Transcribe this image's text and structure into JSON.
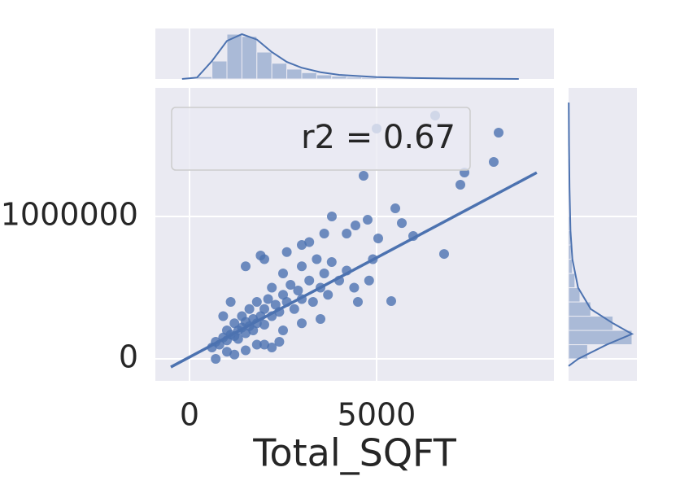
{
  "chart_data": {
    "type": "scatter",
    "x_label": "Total_SQFT",
    "annotation": "r2 = 0.67",
    "color": "#4c72b0",
    "grid": true,
    "xlim": [
      -913,
      9739
    ],
    "ylim": [
      -154000,
      1903000
    ],
    "xticks": [
      0,
      5000
    ],
    "yticks": [
      0,
      1000000
    ],
    "x": [
      600,
      700,
      800,
      900,
      1000,
      1000,
      1100,
      1200,
      1200,
      1300,
      1300,
      1400,
      1400,
      1500,
      1500,
      1600,
      1600,
      1700,
      1700,
      1800,
      1800,
      1900,
      2000,
      2000,
      2100,
      2200,
      2200,
      2300,
      2400,
      2500,
      2500,
      2600,
      2700,
      2800,
      2900,
      3000,
      3000,
      3200,
      3300,
      3400,
      3500,
      3600,
      3700,
      3800,
      4000,
      4200,
      4400,
      1900,
      2000,
      1500,
      2600,
      3000,
      3200,
      4200,
      3600,
      900,
      1100,
      2000,
      2500,
      3000,
      3500,
      4500,
      4800,
      4900,
      1000,
      1500,
      2200,
      2400,
      700,
      1200,
      1800,
      6565,
      5000,
      8261,
      8130,
      7348,
      7239,
      4652,
      5500,
      5674,
      5978,
      6804,
      4761,
      3804,
      4435,
      5391,
      5043
    ],
    "y": [
      80000,
      120000,
      100000,
      150000,
      130000,
      200000,
      170000,
      160000,
      250000,
      200000,
      140000,
      220000,
      300000,
      180000,
      260000,
      230000,
      350000,
      200000,
      280000,
      250000,
      400000,
      300000,
      240000,
      350000,
      420000,
      300000,
      500000,
      380000,
      330000,
      450000,
      600000,
      400000,
      520000,
      350000,
      480000,
      650000,
      420000,
      550000,
      400000,
      700000,
      500000,
      600000,
      450000,
      680000,
      550000,
      620000,
      500000,
      726000,
      700000,
      650000,
      750000,
      800000,
      820000,
      880000,
      880000,
      300000,
      400000,
      100000,
      200000,
      250000,
      280000,
      400000,
      550000,
      700000,
      50000,
      60000,
      80000,
      120000,
      0,
      30000,
      100000,
      1709000,
      1617000,
      1589000,
      1383000,
      1309000,
      1223000,
      1286000,
      1057000,
      954000,
      863000,
      737000,
      977000,
      1000000,
      937000,
      406000,
      846000
    ],
    "regression": {
      "x": [
        -500,
        9280
      ],
      "y": [
        -57000,
        1308000
      ]
    },
    "top_hist": {
      "bins": [
        200,
        600,
        1000,
        1400,
        1800,
        2200,
        2600,
        3000,
        3400,
        3800,
        4200,
        4600,
        5000,
        5400,
        5800,
        6200,
        6600,
        7000,
        7400,
        7800,
        8200,
        8600
      ],
      "counts": [
        5,
        40,
        100,
        95,
        60,
        35,
        22,
        14,
        9,
        6,
        4,
        3,
        2,
        2,
        1,
        1,
        1,
        1,
        0,
        0,
        1
      ],
      "kde_x": [
        -200,
        200,
        600,
        1000,
        1400,
        1800,
        2200,
        2600,
        3000,
        3500,
        4000,
        5000,
        6000,
        7000,
        8000,
        8800
      ],
      "kde_y": [
        0,
        3,
        40,
        85,
        100,
        88,
        60,
        38,
        25,
        15,
        9,
        4,
        2,
        1,
        0.5,
        0
      ]
    },
    "right_hist": {
      "bins": [
        0,
        100000,
        200000,
        300000,
        400000,
        500000,
        600000,
        700000,
        800000,
        900000,
        1000000,
        1100000,
        1200000,
        1300000,
        1400000,
        1500000,
        1600000,
        1700000,
        1800000
      ],
      "counts": [
        30,
        100,
        70,
        35,
        18,
        10,
        6,
        4,
        3,
        2,
        1,
        1,
        1,
        1,
        0,
        1,
        1,
        1
      ],
      "kde_y": [
        -50000,
        0,
        100000,
        175000,
        250000,
        350000,
        500000,
        700000,
        900000,
        1200000,
        1500000,
        1800000
      ],
      "kde_density": [
        0,
        15,
        60,
        100,
        70,
        35,
        15,
        6,
        3,
        1.5,
        0.7,
        0.3
      ]
    }
  }
}
